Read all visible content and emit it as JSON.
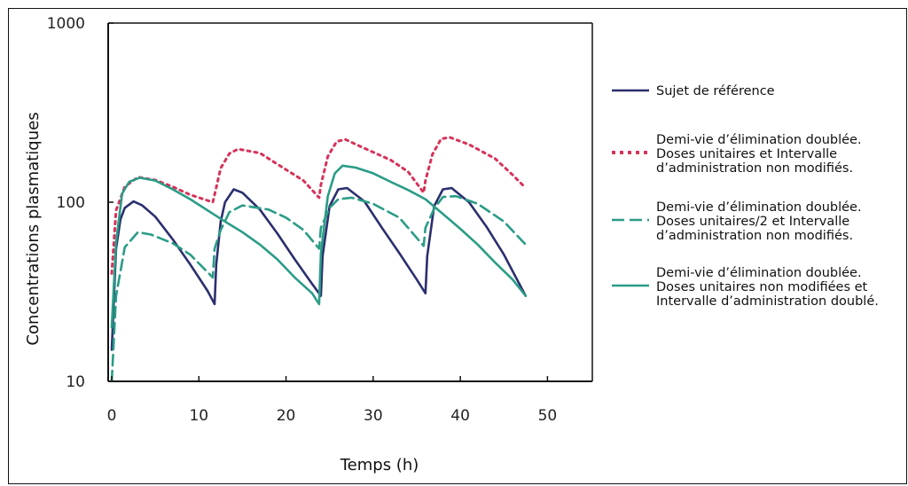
{
  "chart_data": {
    "type": "line",
    "xlabel": "Temps (h)",
    "ylabel": "Concentrations plasmatiques",
    "xlim": [
      0,
      50
    ],
    "ylim": [
      10,
      1000
    ],
    "yscale": "log",
    "xticks": [
      "0",
      "10",
      "20",
      "30",
      "40",
      "50"
    ],
    "yticks": [
      "10",
      "100",
      "1000"
    ],
    "grid": false,
    "legend_position": "right",
    "series": [
      {
        "name": "Sujet de référence",
        "color": "#2b2f6e",
        "style": "solid",
        "points": [
          [
            0,
            15
          ],
          [
            0.5,
            55
          ],
          [
            1,
            80
          ],
          [
            1.5,
            93
          ],
          [
            2.5,
            101
          ],
          [
            3.5,
            96
          ],
          [
            5,
            83
          ],
          [
            7,
            62
          ],
          [
            9,
            45
          ],
          [
            11,
            32
          ],
          [
            11.8,
            27
          ],
          [
            12,
            45
          ],
          [
            12.5,
            78
          ],
          [
            13,
            100
          ],
          [
            14,
            118
          ],
          [
            15,
            113
          ],
          [
            17,
            91
          ],
          [
            19,
            67
          ],
          [
            21,
            48
          ],
          [
            23,
            35
          ],
          [
            24,
            30
          ],
          [
            24.2,
            50
          ],
          [
            25,
            95
          ],
          [
            26,
            118
          ],
          [
            27,
            120
          ],
          [
            29,
            101
          ],
          [
            31,
            72
          ],
          [
            33,
            52
          ],
          [
            35,
            37
          ],
          [
            36,
            31
          ],
          [
            36.2,
            50
          ],
          [
            37,
            95
          ],
          [
            38,
            118
          ],
          [
            39,
            120
          ],
          [
            41,
            100
          ],
          [
            43,
            73
          ],
          [
            45,
            51
          ],
          [
            47.5,
            30
          ]
        ]
      },
      {
        "name": "Demi-vie d'élimination doublée. Doses unitaires et Intervalle d'administration non modifiés.",
        "color": "#d6335a",
        "style": "dotted",
        "points": [
          [
            0,
            40
          ],
          [
            0.5,
            90
          ],
          [
            1.5,
            122
          ],
          [
            3,
            138
          ],
          [
            5,
            133
          ],
          [
            7,
            122
          ],
          [
            9,
            110
          ],
          [
            11.6,
            100
          ],
          [
            11.8,
            110
          ],
          [
            12.5,
            155
          ],
          [
            13.5,
            187
          ],
          [
            14.5,
            198
          ],
          [
            17,
            188
          ],
          [
            20,
            152
          ],
          [
            22,
            132
          ],
          [
            23.8,
            106
          ],
          [
            24,
            125
          ],
          [
            24.8,
            180
          ],
          [
            25.8,
            218
          ],
          [
            26.8,
            224
          ],
          [
            29,
            200
          ],
          [
            32,
            172
          ],
          [
            34,
            148
          ],
          [
            35.8,
            113
          ],
          [
            36,
            132
          ],
          [
            36.8,
            185
          ],
          [
            37.8,
            226
          ],
          [
            38.8,
            230
          ],
          [
            41,
            210
          ],
          [
            44,
            175
          ],
          [
            46,
            142
          ],
          [
            47.5,
            120
          ]
        ]
      },
      {
        "name": "Demi-vie d'élimination doublée. Doses unitaires/2 et Intervalle d'administration non modifiés.",
        "color": "#2a9c86",
        "style": "dashed",
        "points": [
          [
            0,
            10
          ],
          [
            0.5,
            30
          ],
          [
            1.5,
            56
          ],
          [
            3,
            68
          ],
          [
            4.5,
            66
          ],
          [
            7,
            59
          ],
          [
            9,
            51
          ],
          [
            11.6,
            38
          ],
          [
            11.8,
            55
          ],
          [
            12.5,
            70
          ],
          [
            13.5,
            88
          ],
          [
            15,
            96
          ],
          [
            18,
            91
          ],
          [
            20,
            82
          ],
          [
            22,
            70
          ],
          [
            23.8,
            55
          ],
          [
            24,
            72
          ],
          [
            25,
            93
          ],
          [
            26,
            104
          ],
          [
            27.5,
            106
          ],
          [
            30,
            98
          ],
          [
            33,
            82
          ],
          [
            35.8,
            57
          ],
          [
            36,
            72
          ],
          [
            37,
            92
          ],
          [
            38,
            107
          ],
          [
            39.5,
            108
          ],
          [
            42,
            98
          ],
          [
            45,
            78
          ],
          [
            47.5,
            58
          ]
        ]
      },
      {
        "name": "Demi-vie d'élimination doublée. Doses unitaires non modifiées et Intervalle d'administration doublé.",
        "color": "#2a9c86",
        "style": "solid",
        "points": [
          [
            0,
            20
          ],
          [
            0.5,
            60
          ],
          [
            1.2,
            112
          ],
          [
            2,
            130
          ],
          [
            3.2,
            137
          ],
          [
            5,
            132
          ],
          [
            7,
            118
          ],
          [
            9,
            104
          ],
          [
            11,
            90
          ],
          [
            13,
            78
          ],
          [
            15,
            68
          ],
          [
            17,
            58
          ],
          [
            19,
            48
          ],
          [
            21,
            38
          ],
          [
            23,
            31
          ],
          [
            23.8,
            27
          ],
          [
            24,
            52
          ],
          [
            24.8,
            108
          ],
          [
            25.6,
            145
          ],
          [
            26.5,
            160
          ],
          [
            28,
            156
          ],
          [
            30,
            145
          ],
          [
            32,
            130
          ],
          [
            34,
            117
          ],
          [
            36,
            104
          ],
          [
            38,
            86
          ],
          [
            40,
            71
          ],
          [
            42,
            58
          ],
          [
            44,
            46
          ],
          [
            46,
            37
          ],
          [
            47.5,
            30
          ]
        ]
      }
    ],
    "legend": [
      {
        "series": 0,
        "lines": [
          "Sujet de référence"
        ]
      },
      {
        "series": 1,
        "lines": [
          "Demi-vie d’élimination doublée.",
          "Doses unitaires et Intervalle",
          "d’administration non modifiés."
        ]
      },
      {
        "series": 2,
        "lines": [
          "Demi-vie d’élimination doublée.",
          "Doses unitaires/2 et Intervalle",
          "d’administration non modifiés."
        ]
      },
      {
        "series": 3,
        "lines": [
          "Demi-vie d’élimination doublée.",
          "Doses unitaires non modifiées et",
          "Intervalle d’administration doublé."
        ]
      }
    ]
  }
}
